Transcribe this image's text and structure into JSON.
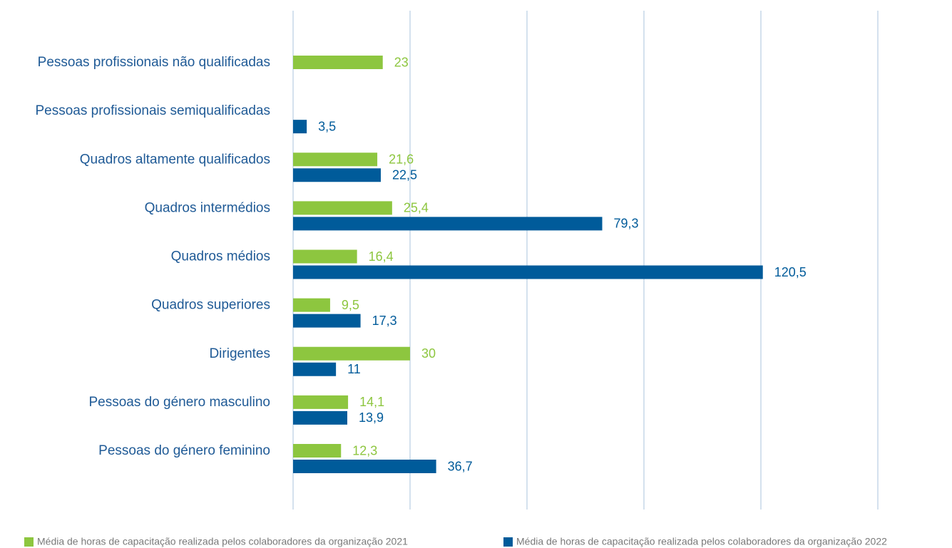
{
  "chart_data": {
    "type": "hbar",
    "categories": [
      "Pessoas profissionais não qualificadas",
      "Pessoas profissionais semiqualificadas",
      "Quadros altamente qualificados",
      "Quadros intermédios",
      "Quadros médios",
      "Quadros superiores",
      "Dirigentes",
      "Pessoas do género masculino",
      "Pessoas do género feminino"
    ],
    "series": [
      {
        "name": "Média de horas de capacitação realizada pelos colaboradores da organização 2021",
        "color": "#8dc63f",
        "values": [
          23,
          null,
          21.6,
          25.4,
          16.4,
          9.5,
          30,
          14.1,
          12.3
        ],
        "value_labels": [
          "23",
          null,
          "21,6",
          "25,4",
          "16,4",
          "9,5",
          "30",
          "14,1",
          "12,3"
        ]
      },
      {
        "name": "Média de horas de capacitação realizada pelos colaboradores da organização 2022",
        "color": "#005b9a",
        "values": [
          null,
          3.5,
          22.5,
          79.3,
          120.5,
          17.3,
          11,
          13.9,
          36.7
        ],
        "value_labels": [
          null,
          "3,5",
          "22,5",
          "79,3",
          "120,5",
          "17,3",
          "11",
          "13,9",
          "36,7"
        ]
      }
    ],
    "xlim": [
      0,
      150
    ],
    "xticks": [
      0,
      30,
      60,
      90,
      120,
      150
    ],
    "grid": true,
    "legend": "bottom"
  }
}
